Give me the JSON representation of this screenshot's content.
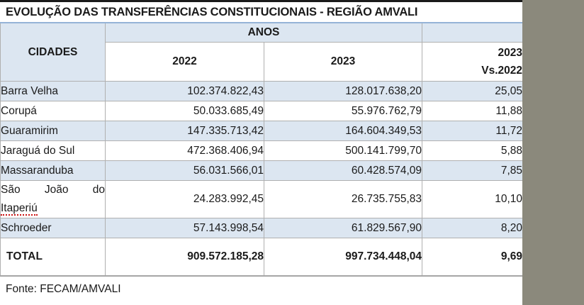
{
  "title": "EVOLUÇÃO DAS TRANSFERÊNCIAS CONSTITUCIONAIS - REGIÃO AMVALI",
  "table": {
    "header": {
      "cities_label": "CIDADES",
      "years_label": "ANOS",
      "year_2022": "2022",
      "year_2023": "2023",
      "variation_line1": "2023",
      "variation_line2": "Vs.2022"
    },
    "rows": [
      {
        "city": "Barra Velha",
        "city_lines": [
          "Barra Velha"
        ],
        "y2022": "102.374.822,43",
        "y2023": "128.017.638,20",
        "variation": "25,05"
      },
      {
        "city": "Corupá",
        "city_lines": [
          "Corupá"
        ],
        "y2022": "50.033.685,49",
        "y2023": "55.976.762,79",
        "variation": "11,88"
      },
      {
        "city": "Guaramirim",
        "city_lines": [
          "Guaramirim"
        ],
        "y2022": "147.335.713,42",
        "y2023": "164.604.349,53",
        "variation": "11,72"
      },
      {
        "city": "Jaraguá do Sul",
        "city_lines": [
          "Jaraguá do Sul"
        ],
        "y2022": "472.368.406,94",
        "y2023": "500.141.799,70",
        "variation": "5,88"
      },
      {
        "city": "Massaranduba",
        "city_lines": [
          "Massaranduba"
        ],
        "y2022": "56.031.566,01",
        "y2023": "60.428.574,09",
        "variation": "7,85"
      },
      {
        "city": "São João do Itaperiú",
        "city_lines": [
          "São João do",
          "Itaperiú"
        ],
        "misspell": "Itaperiú",
        "y2022": "24.283.992,45",
        "y2023": "26.735.755,83",
        "variation": "10,10"
      },
      {
        "city": "Schroeder",
        "city_lines": [
          "Schroeder"
        ],
        "y2022": "57.143.998,54",
        "y2023": "61.829.567,90",
        "variation": "8,20"
      }
    ],
    "total": {
      "label": "TOTAL",
      "y2022": "909.572.185,28",
      "y2023": "997.734.448,04",
      "variation": "9,69"
    }
  },
  "footer": {
    "source": "Fonte: FECAM/AMVALI"
  },
  "colors": {
    "band_blue": "#dce6f1",
    "table_top_border_blue": "#95b3d7",
    "cell_border_gray": "#b0b0b0",
    "side_strip_gray": "#8b897c",
    "top_border_black": "#1a1a1a",
    "spellcheck_red": "#cc1111"
  }
}
